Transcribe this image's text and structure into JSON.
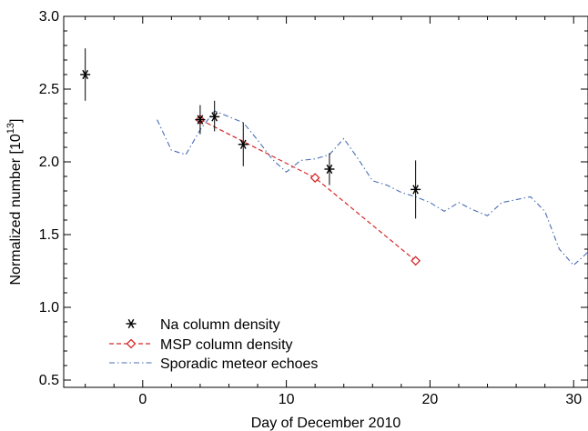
{
  "chart_data": {
    "type": "line",
    "title": "",
    "xlabel": "Day of December 2010",
    "ylabel_text": "Normalized number [10",
    "ylabel_exp": "13",
    "ylabel_close": "]",
    "xlim": [
      -5.5,
      31
    ],
    "ylim": [
      0.45,
      3.0
    ],
    "xticks": [
      0,
      10,
      20,
      30
    ],
    "xtick_labels": [
      "0",
      "10",
      "20",
      "30"
    ],
    "yticks": [
      0.5,
      1.0,
      1.5,
      2.0,
      2.5,
      3.0
    ],
    "ytick_labels": [
      "0.5",
      "1.0",
      "1.5",
      "2.0",
      "2.5",
      "3.0"
    ],
    "grid": false,
    "legend_position": "bottom-left",
    "series": [
      {
        "name": "Na column density",
        "style": "asterisk-with-errorbars",
        "color": "#000000",
        "points": [
          {
            "x": -4,
            "y": 2.6,
            "err_low": 2.42,
            "err_high": 2.78
          },
          {
            "x": 4,
            "y": 2.29,
            "err_low": 2.19,
            "err_high": 2.39
          },
          {
            "x": 5,
            "y": 2.31,
            "err_low": 2.21,
            "err_high": 2.42
          },
          {
            "x": 7,
            "y": 2.12,
            "err_low": 1.97,
            "err_high": 2.27
          },
          {
            "x": 13,
            "y": 1.95,
            "err_low": 1.84,
            "err_high": 2.06
          },
          {
            "x": 19,
            "y": 1.81,
            "err_low": 1.61,
            "err_high": 2.01
          }
        ]
      },
      {
        "name": "MSP column density",
        "style": "dashed-diamond",
        "color": "#d62728",
        "points": [
          {
            "x": 4,
            "y": 2.29
          },
          {
            "x": 12,
            "y": 1.89
          },
          {
            "x": 19,
            "y": 1.32
          }
        ]
      },
      {
        "name": "Sporadic meteor echoes",
        "style": "dash-dot",
        "color": "#4a6fb5",
        "points": [
          {
            "x": 1,
            "y": 2.29
          },
          {
            "x": 2,
            "y": 2.08
          },
          {
            "x": 3,
            "y": 2.05
          },
          {
            "x": 4,
            "y": 2.22
          },
          {
            "x": 5,
            "y": 2.35
          },
          {
            "x": 6,
            "y": 2.31
          },
          {
            "x": 7,
            "y": 2.27
          },
          {
            "x": 8,
            "y": 2.15
          },
          {
            "x": 9,
            "y": 2.02
          },
          {
            "x": 10,
            "y": 1.93
          },
          {
            "x": 11,
            "y": 2.01
          },
          {
            "x": 12,
            "y": 2.02
          },
          {
            "x": 13,
            "y": 2.05
          },
          {
            "x": 14,
            "y": 2.16
          },
          {
            "x": 15,
            "y": 2.02
          },
          {
            "x": 16,
            "y": 1.87
          },
          {
            "x": 17,
            "y": 1.84
          },
          {
            "x": 18,
            "y": 1.79
          },
          {
            "x": 19,
            "y": 1.76
          },
          {
            "x": 20,
            "y": 1.72
          },
          {
            "x": 21,
            "y": 1.66
          },
          {
            "x": 22,
            "y": 1.72
          },
          {
            "x": 23,
            "y": 1.67
          },
          {
            "x": 24,
            "y": 1.63
          },
          {
            "x": 25,
            "y": 1.72
          },
          {
            "x": 26,
            "y": 1.74
          },
          {
            "x": 27,
            "y": 1.76
          },
          {
            "x": 28,
            "y": 1.66
          },
          {
            "x": 29,
            "y": 1.4
          },
          {
            "x": 30,
            "y": 1.29
          },
          {
            "x": 31,
            "y": 1.38
          }
        ]
      }
    ]
  }
}
